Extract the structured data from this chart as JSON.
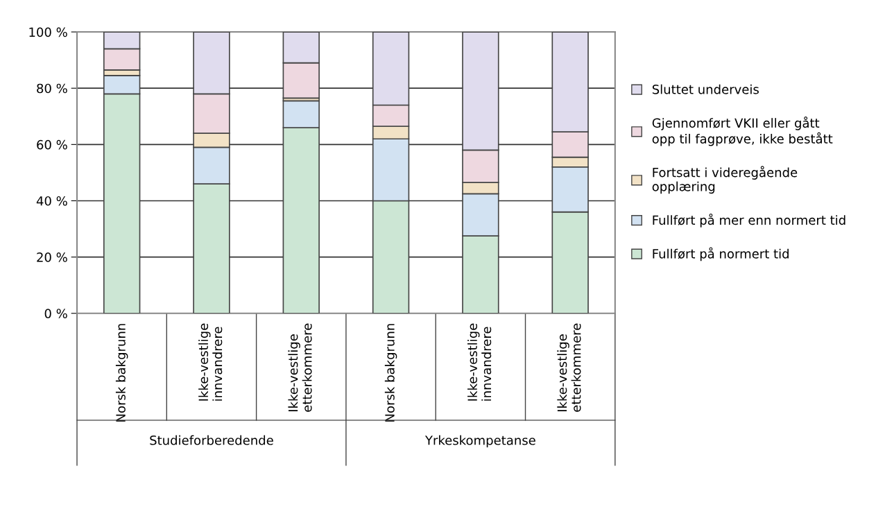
{
  "chart_data": {
    "type": "bar",
    "stacked": true,
    "categories": [
      "Norsk bakgrunn",
      "Ikke-vestlige\ninnvandrere",
      "Ikke-vestlige\netterkommere",
      "Norsk bakgrunn",
      "Ikke-vestlige\ninnvandrere",
      "Ikke-vestlige\netterkommere"
    ],
    "series": [
      {
        "name": "Fullført på normert tid",
        "color": "#cce6d4",
        "values": [
          78,
          46,
          66,
          40,
          27.5,
          36
        ]
      },
      {
        "name": "Fullført på mer enn normert tid",
        "color": "#d2e2f2",
        "values": [
          6.5,
          13,
          9.5,
          22,
          15,
          16
        ]
      },
      {
        "name": "Fortsatt i videregående\nopplæring",
        "color": "#f2e2c6",
        "values": [
          2,
          5,
          1,
          4.5,
          4,
          3.5
        ]
      },
      {
        "name": "Gjennomført VKII eller gått\nopp til fagprøve, ikke bestått",
        "color": "#eed8e0",
        "values": [
          7.5,
          14,
          12.5,
          7.5,
          11.5,
          9
        ]
      },
      {
        "name": "Sluttet underveis",
        "color": "#e0dcee",
        "values": [
          6,
          22,
          11,
          26,
          42,
          35.5
        ]
      }
    ],
    "ylim": [
      0,
      100
    ],
    "yticks": [
      {
        "value": 0,
        "label": "0 %"
      },
      {
        "value": 20,
        "label": "20 %"
      },
      {
        "value": 40,
        "label": "40 %"
      },
      {
        "value": 60,
        "label": "60 %"
      },
      {
        "value": 80,
        "label": "80 %"
      },
      {
        "value": 100,
        "label": "100 %"
      }
    ],
    "grid": "y",
    "legend": "right",
    "annotations": [
      "Studieforberedende",
      "Yrkeskompetanse"
    ]
  }
}
